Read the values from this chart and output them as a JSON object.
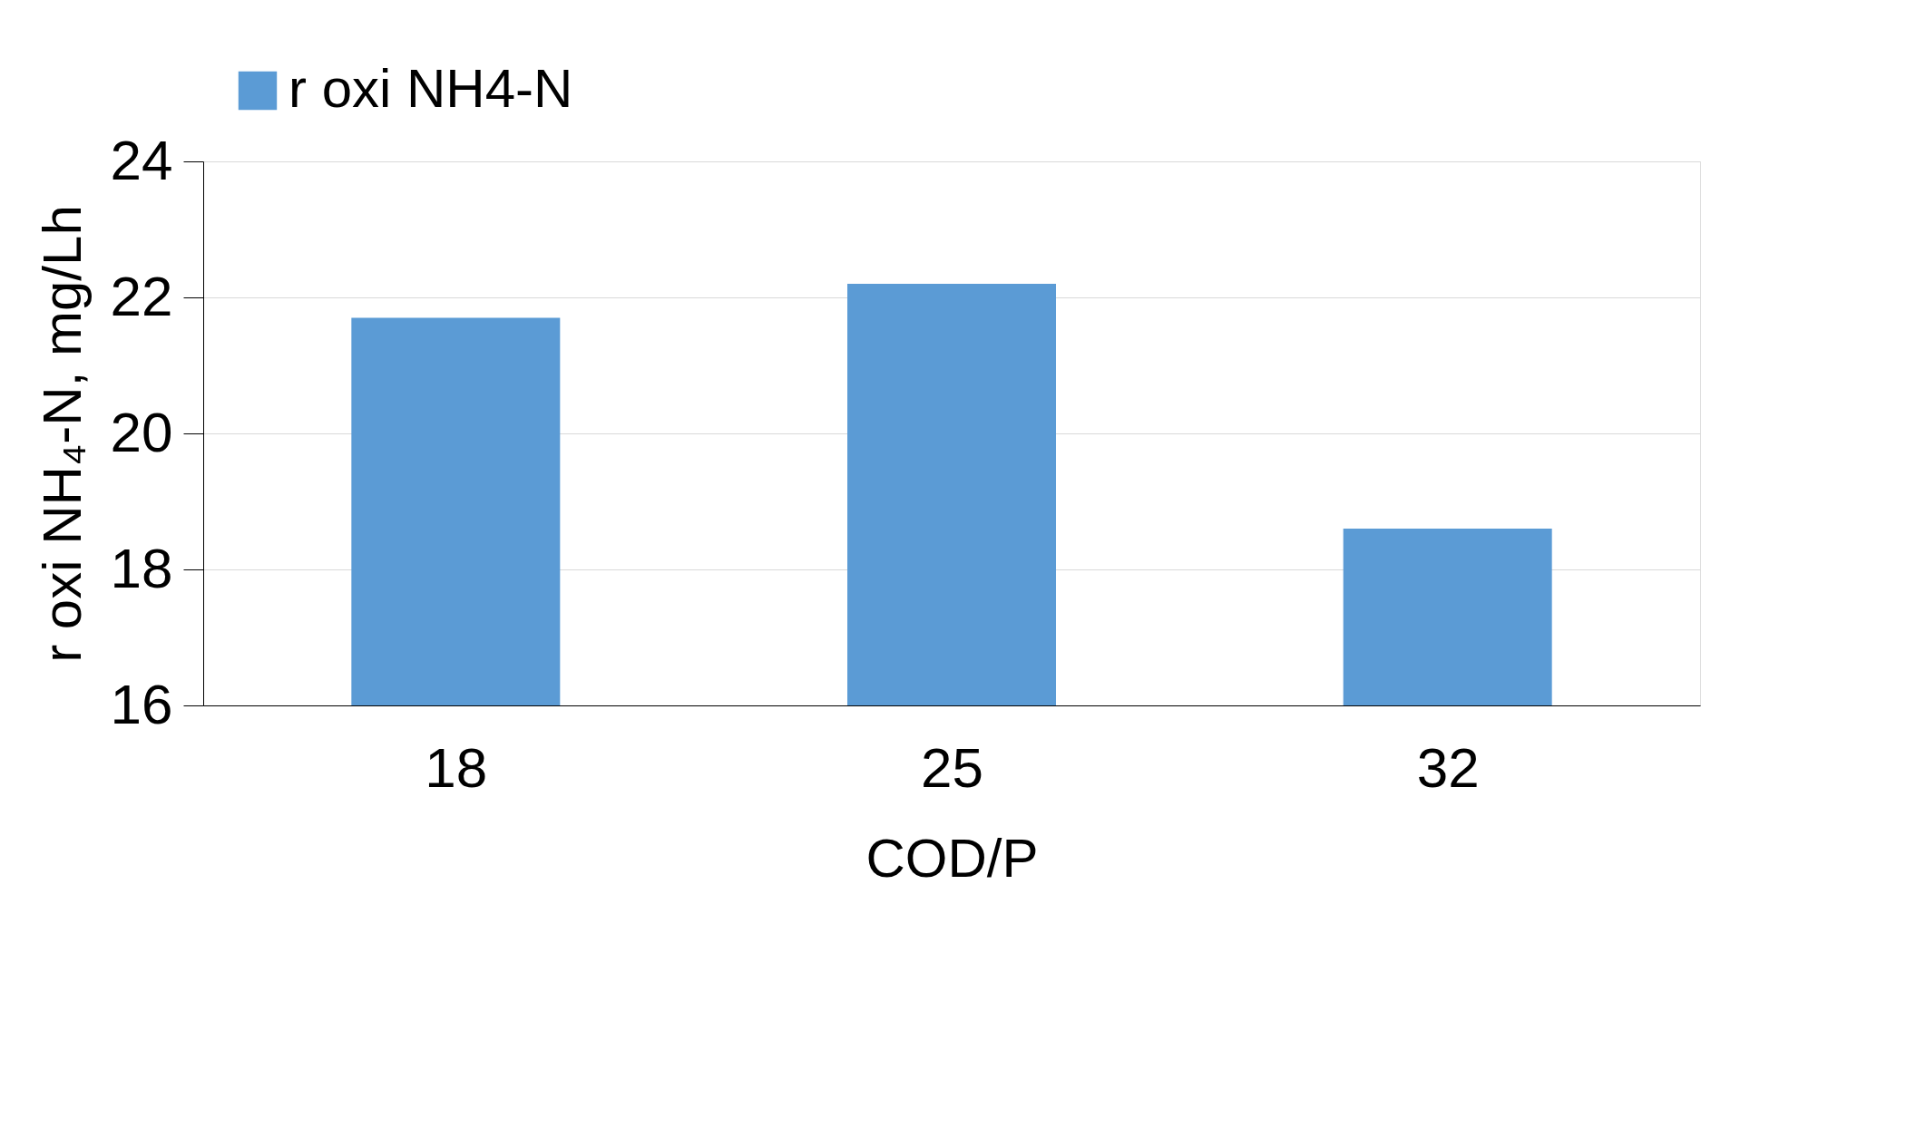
{
  "chart_data": {
    "type": "bar",
    "xlabel": "COD/P",
    "ylabel": "r oxi NH₄-N, mg/Lh",
    "categories": [
      "18",
      "25",
      "32"
    ],
    "series": [
      {
        "name": "r oxi NH4-N",
        "color": "#5b9bd5",
        "values": [
          21.7,
          22.2,
          18.6
        ]
      }
    ],
    "ylim": [
      16,
      24
    ],
    "yticks": [
      16,
      18,
      20,
      22,
      24
    ],
    "grid": "y",
    "legend": "top"
  }
}
